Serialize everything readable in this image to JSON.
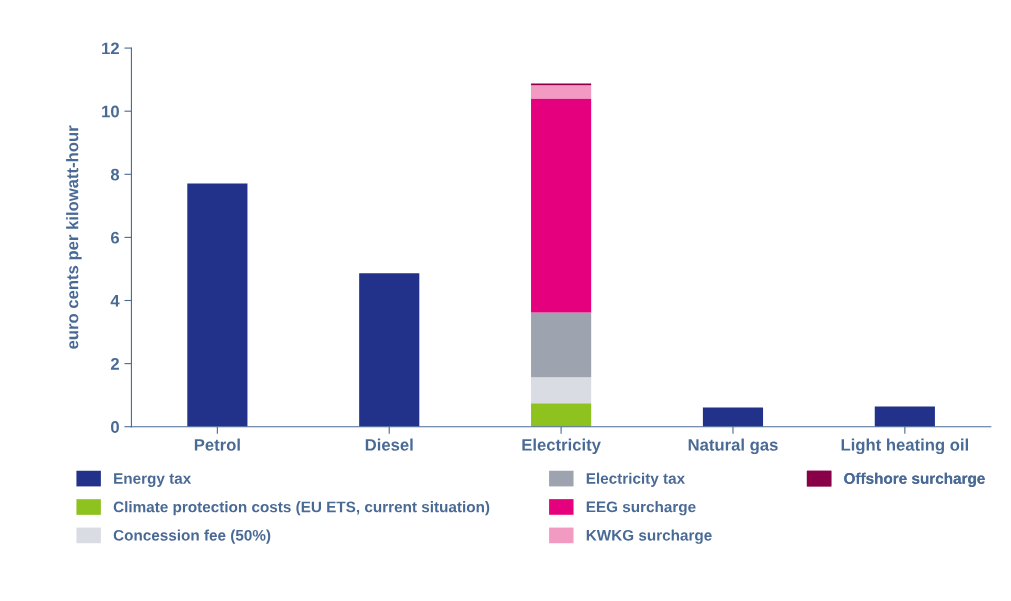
{
  "chart_data": {
    "type": "bar",
    "stacked": true,
    "ylabel": "euro cents per kilowatt-hour",
    "categories": [
      "Petrol",
      "Diesel",
      "Electricity",
      "Natural gas",
      "Light heating oil"
    ],
    "series": [
      {
        "name": "Energy tax",
        "color": "#22318a",
        "values": [
          7.71,
          4.86,
          null,
          0.61,
          0.64
        ]
      },
      {
        "name": "Climate protection costs (EU ETS, current situation)",
        "color": "#8dc21f",
        "values": [
          null,
          null,
          0.74,
          null,
          null
        ]
      },
      {
        "name": "Concession fee (50%)",
        "color": "#d9dce3",
        "values": [
          null,
          null,
          0.83,
          null,
          null
        ]
      },
      {
        "name": "Electricity tax",
        "color": "#9ea3b0",
        "values": [
          null,
          null,
          2.05,
          null,
          null
        ]
      },
      {
        "name": "EEG surcharge",
        "color": "#e5007e",
        "values": [
          null,
          null,
          6.78,
          null,
          null
        ]
      },
      {
        "name": "KWKG surcharge",
        "color": "#f29ac2",
        "values": [
          null,
          null,
          0.42,
          null,
          null
        ]
      },
      {
        "name": "Offshore surcharge",
        "color": "#8a0048",
        "values": [
          null,
          null,
          0.06,
          null,
          null
        ]
      }
    ],
    "ylim": [
      0,
      12
    ],
    "yticks": [
      0,
      2,
      4,
      6,
      8,
      10,
      12
    ],
    "grid": false,
    "legend": "bottom"
  }
}
